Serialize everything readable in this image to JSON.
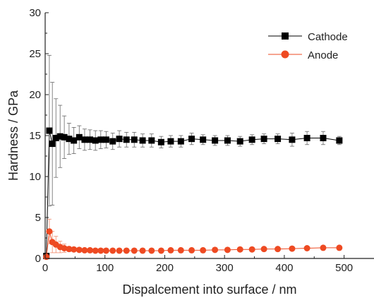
{
  "chart_data": {
    "type": "scatter",
    "xlabel": "Dispalcement into surface / nm",
    "ylabel": "Hardness / GPa",
    "xlim": [
      0,
      550
    ],
    "ylim": [
      0,
      30
    ],
    "xticks": [
      0,
      100,
      200,
      300,
      400,
      500
    ],
    "yticks": [
      0,
      5,
      10,
      15,
      20,
      25,
      30
    ],
    "legend_position": "top-right",
    "series": [
      {
        "name": "Cathode",
        "color": "#000000",
        "marker": "square",
        "points": [
          {
            "x": 2,
            "y": 0.3,
            "err": 0
          },
          {
            "x": 7,
            "y": 15.6,
            "err": 9.2
          },
          {
            "x": 12,
            "y": 14.0,
            "err": 7.5
          },
          {
            "x": 18,
            "y": 14.7,
            "err": 4.8
          },
          {
            "x": 25,
            "y": 14.9,
            "err": 3.8
          },
          {
            "x": 32,
            "y": 14.8,
            "err": 2.6
          },
          {
            "x": 40,
            "y": 14.6,
            "err": 1.9
          },
          {
            "x": 48,
            "y": 14.4,
            "err": 1.6
          },
          {
            "x": 57,
            "y": 14.8,
            "err": 1.4
          },
          {
            "x": 66,
            "y": 14.5,
            "err": 1.3
          },
          {
            "x": 75,
            "y": 14.5,
            "err": 1.2
          },
          {
            "x": 84,
            "y": 14.4,
            "err": 1.2
          },
          {
            "x": 93,
            "y": 14.5,
            "err": 1.1
          },
          {
            "x": 102,
            "y": 14.5,
            "err": 1.0
          },
          {
            "x": 113,
            "y": 14.3,
            "err": 1.0
          },
          {
            "x": 124,
            "y": 14.6,
            "err": 1.0
          },
          {
            "x": 136,
            "y": 14.5,
            "err": 0.9
          },
          {
            "x": 149,
            "y": 14.5,
            "err": 0.9
          },
          {
            "x": 163,
            "y": 14.4,
            "err": 0.8
          },
          {
            "x": 178,
            "y": 14.4,
            "err": 0.8
          },
          {
            "x": 194,
            "y": 14.2,
            "err": 0.7
          },
          {
            "x": 210,
            "y": 14.3,
            "err": 0.7
          },
          {
            "x": 227,
            "y": 14.3,
            "err": 0.7
          },
          {
            "x": 245,
            "y": 14.6,
            "err": 0.7
          },
          {
            "x": 264,
            "y": 14.5,
            "err": 0.6
          },
          {
            "x": 284,
            "y": 14.4,
            "err": 0.6
          },
          {
            "x": 305,
            "y": 14.4,
            "err": 0.6
          },
          {
            "x": 326,
            "y": 14.3,
            "err": 0.6
          },
          {
            "x": 346,
            "y": 14.5,
            "err": 0.6
          },
          {
            "x": 366,
            "y": 14.6,
            "err": 0.6
          },
          {
            "x": 389,
            "y": 14.6,
            "err": 0.6
          },
          {
            "x": 413,
            "y": 14.5,
            "err": 0.8
          },
          {
            "x": 438,
            "y": 14.7,
            "err": 0.8
          },
          {
            "x": 465,
            "y": 14.7,
            "err": 0.8
          },
          {
            "x": 492,
            "y": 14.4,
            "err": 0.5
          }
        ]
      },
      {
        "name": "Anode",
        "color": "#ee4a22",
        "marker": "circle",
        "points": [
          {
            "x": 2,
            "y": 0.2,
            "err": 0
          },
          {
            "x": 7,
            "y": 3.3,
            "err": 1.5
          },
          {
            "x": 12,
            "y": 2.0,
            "err": 1.3
          },
          {
            "x": 18,
            "y": 1.7,
            "err": 1.0
          },
          {
            "x": 25,
            "y": 1.4,
            "err": 0.7
          },
          {
            "x": 32,
            "y": 1.25,
            "err": 0.5
          },
          {
            "x": 40,
            "y": 1.15,
            "err": 0.3
          },
          {
            "x": 48,
            "y": 1.1,
            "err": 0.25
          },
          {
            "x": 57,
            "y": 1.05,
            "err": 0.2
          },
          {
            "x": 66,
            "y": 1.0,
            "err": 0.15
          },
          {
            "x": 75,
            "y": 1.0,
            "err": 0.1
          },
          {
            "x": 84,
            "y": 0.95,
            "err": 0.1
          },
          {
            "x": 93,
            "y": 0.95,
            "err": 0.1
          },
          {
            "x": 102,
            "y": 0.95,
            "err": 0.1
          },
          {
            "x": 113,
            "y": 0.95,
            "err": 0.1
          },
          {
            "x": 124,
            "y": 0.95,
            "err": 0.1
          },
          {
            "x": 136,
            "y": 0.95,
            "err": 0.1
          },
          {
            "x": 149,
            "y": 0.95,
            "err": 0.1
          },
          {
            "x": 163,
            "y": 0.95,
            "err": 0.1
          },
          {
            "x": 178,
            "y": 0.95,
            "err": 0.1
          },
          {
            "x": 194,
            "y": 0.95,
            "err": 0.1
          },
          {
            "x": 210,
            "y": 1.0,
            "err": 0.1
          },
          {
            "x": 227,
            "y": 1.0,
            "err": 0.1
          },
          {
            "x": 245,
            "y": 1.0,
            "err": 0.1
          },
          {
            "x": 264,
            "y": 1.0,
            "err": 0.1
          },
          {
            "x": 284,
            "y": 1.05,
            "err": 0.1
          },
          {
            "x": 305,
            "y": 1.05,
            "err": 0.1
          },
          {
            "x": 326,
            "y": 1.1,
            "err": 0.1
          },
          {
            "x": 346,
            "y": 1.1,
            "err": 0.1
          },
          {
            "x": 366,
            "y": 1.15,
            "err": 0.1
          },
          {
            "x": 389,
            "y": 1.15,
            "err": 0.1
          },
          {
            "x": 413,
            "y": 1.2,
            "err": 0.1
          },
          {
            "x": 438,
            "y": 1.25,
            "err": 0.1
          },
          {
            "x": 465,
            "y": 1.3,
            "err": 0.1
          },
          {
            "x": 492,
            "y": 1.3,
            "err": 0.1
          }
        ]
      }
    ]
  }
}
